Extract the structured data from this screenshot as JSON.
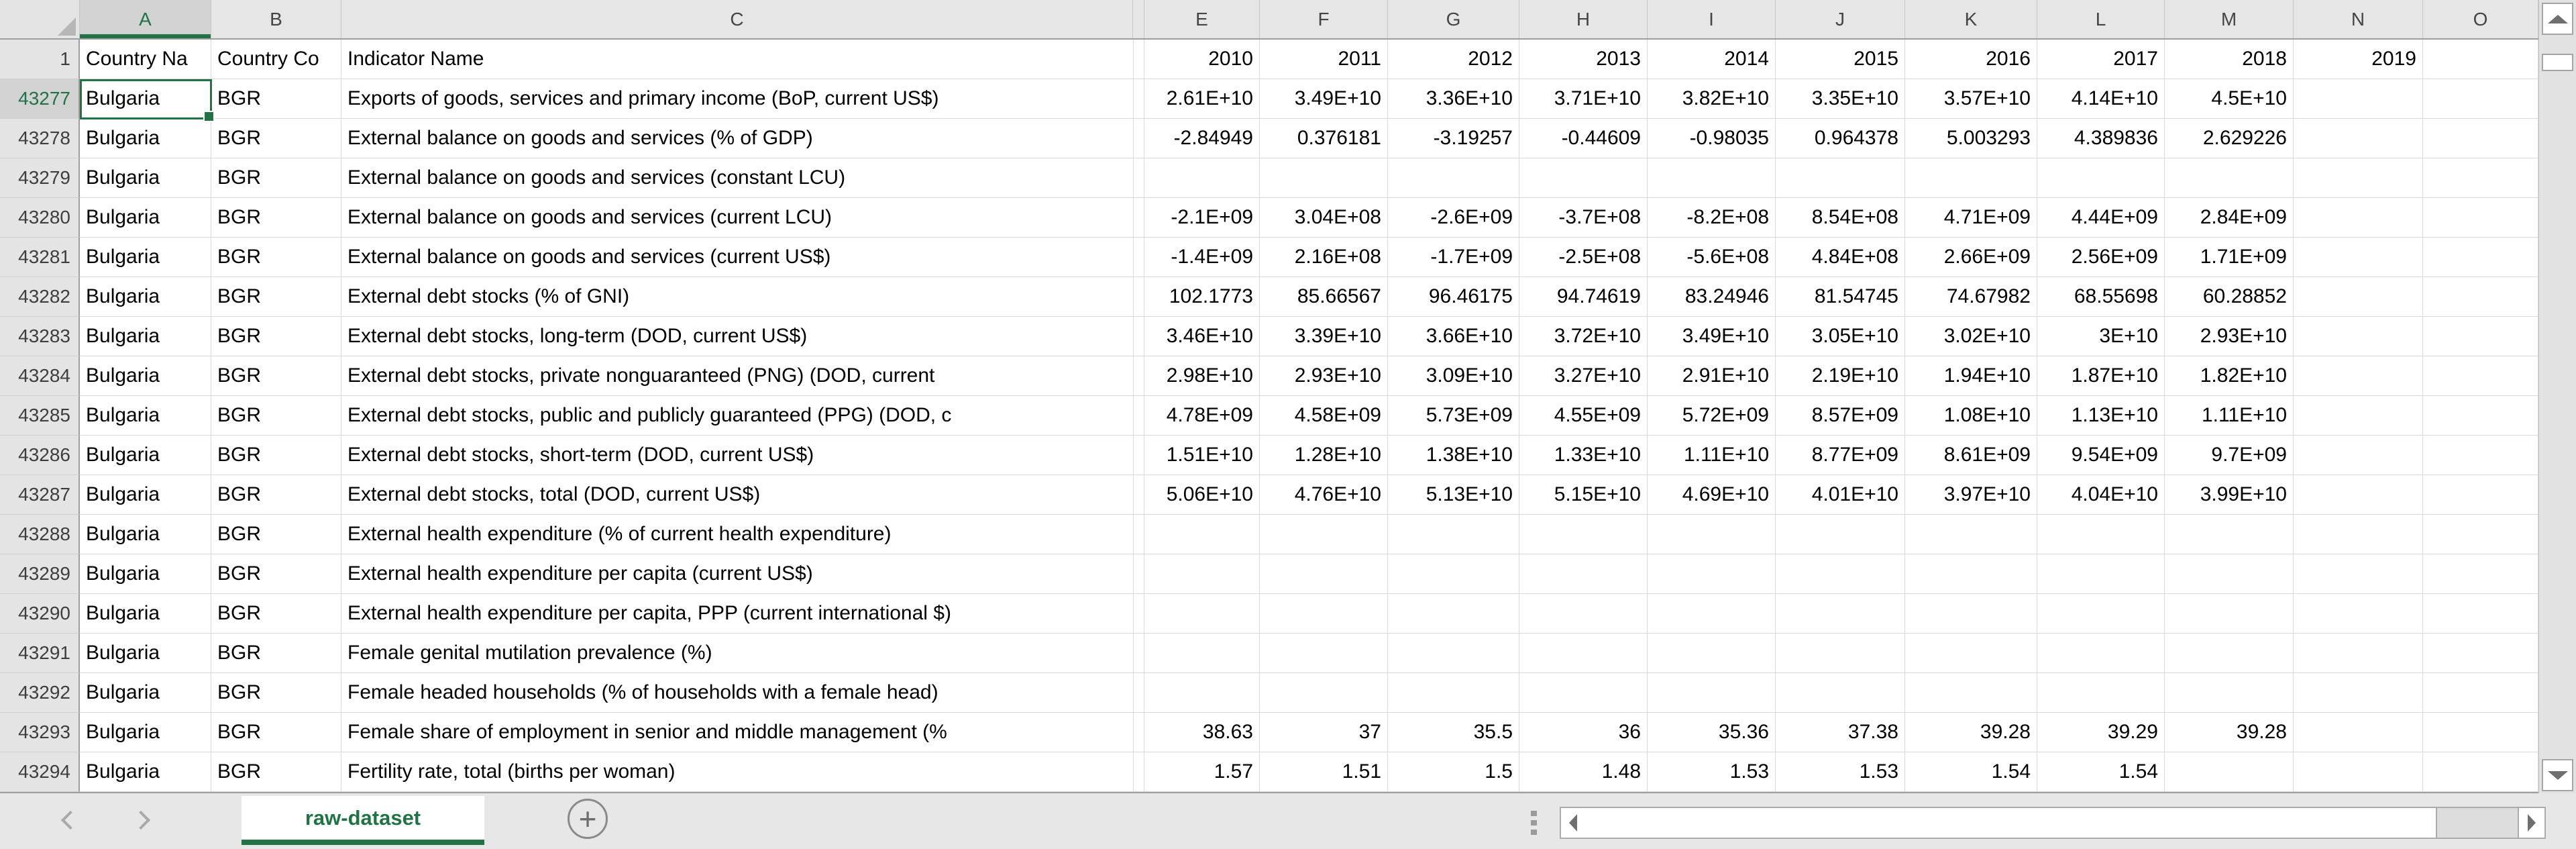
{
  "app": {
    "type": "spreadsheet-worksheet"
  },
  "selection": {
    "column": "A",
    "row": "43277",
    "cell": "A43277"
  },
  "columns": [
    {
      "id": "select-all",
      "label": ""
    },
    {
      "id": "A",
      "label": "A"
    },
    {
      "id": "B",
      "label": "B"
    },
    {
      "id": "C",
      "label": "C"
    },
    {
      "id": "D",
      "label": ""
    },
    {
      "id": "E",
      "label": "E"
    },
    {
      "id": "F",
      "label": "F"
    },
    {
      "id": "G",
      "label": "G"
    },
    {
      "id": "H",
      "label": "H"
    },
    {
      "id": "I",
      "label": "I"
    },
    {
      "id": "J",
      "label": "J"
    },
    {
      "id": "K",
      "label": "K"
    },
    {
      "id": "L",
      "label": "L"
    },
    {
      "id": "M",
      "label": "M"
    },
    {
      "id": "N",
      "label": "N"
    },
    {
      "id": "O",
      "label": "O"
    }
  ],
  "header_row": {
    "row_number": "1",
    "country_name_header": "Country Na",
    "country_code_header": "Country Co",
    "indicator_header": "Indicator Name",
    "year_headers": [
      "2010",
      "2011",
      "2012",
      "2013",
      "2014",
      "2015",
      "2016",
      "2017",
      "2018",
      "2019"
    ],
    "last_cell": ""
  },
  "rows": [
    {
      "n": "43277",
      "country": "Bulgaria",
      "code": "BGR",
      "indicator": "Exports of goods, services and primary income (BoP, current US$)",
      "values": [
        "2.61E+10",
        "3.49E+10",
        "3.36E+10",
        "3.71E+10",
        "3.82E+10",
        "3.35E+10",
        "3.57E+10",
        "4.14E+10",
        "4.5E+10",
        ""
      ]
    },
    {
      "n": "43278",
      "country": "Bulgaria",
      "code": "BGR",
      "indicator": "External balance on goods and services (% of GDP)",
      "values": [
        "-2.84949",
        "0.376181",
        "-3.19257",
        "-0.44609",
        "-0.98035",
        "0.964378",
        "5.003293",
        "4.389836",
        "2.629226",
        ""
      ]
    },
    {
      "n": "43279",
      "country": "Bulgaria",
      "code": "BGR",
      "indicator": "External balance on goods and services (constant LCU)",
      "values": [
        "",
        "",
        "",
        "",
        "",
        "",
        "",
        "",
        "",
        ""
      ]
    },
    {
      "n": "43280",
      "country": "Bulgaria",
      "code": "BGR",
      "indicator": "External balance on goods and services (current LCU)",
      "values": [
        "-2.1E+09",
        "3.04E+08",
        "-2.6E+09",
        "-3.7E+08",
        "-8.2E+08",
        "8.54E+08",
        "4.71E+09",
        "4.44E+09",
        "2.84E+09",
        ""
      ]
    },
    {
      "n": "43281",
      "country": "Bulgaria",
      "code": "BGR",
      "indicator": "External balance on goods and services (current US$)",
      "values": [
        "-1.4E+09",
        "2.16E+08",
        "-1.7E+09",
        "-2.5E+08",
        "-5.6E+08",
        "4.84E+08",
        "2.66E+09",
        "2.56E+09",
        "1.71E+09",
        ""
      ]
    },
    {
      "n": "43282",
      "country": "Bulgaria",
      "code": "BGR",
      "indicator": "External debt stocks (% of GNI)",
      "values": [
        "102.1773",
        "85.66567",
        "96.46175",
        "94.74619",
        "83.24946",
        "81.54745",
        "74.67982",
        "68.55698",
        "60.28852",
        ""
      ]
    },
    {
      "n": "43283",
      "country": "Bulgaria",
      "code": "BGR",
      "indicator": "External debt stocks, long-term (DOD, current US$)",
      "values": [
        "3.46E+10",
        "3.39E+10",
        "3.66E+10",
        "3.72E+10",
        "3.49E+10",
        "3.05E+10",
        "3.02E+10",
        "3E+10",
        "2.93E+10",
        ""
      ]
    },
    {
      "n": "43284",
      "country": "Bulgaria",
      "code": "BGR",
      "indicator": "External debt stocks, private nonguaranteed (PNG) (DOD, current",
      "values": [
        "2.98E+10",
        "2.93E+10",
        "3.09E+10",
        "3.27E+10",
        "2.91E+10",
        "2.19E+10",
        "1.94E+10",
        "1.87E+10",
        "1.82E+10",
        ""
      ]
    },
    {
      "n": "43285",
      "country": "Bulgaria",
      "code": "BGR",
      "indicator": "External debt stocks, public and publicly guaranteed (PPG) (DOD, c",
      "values": [
        "4.78E+09",
        "4.58E+09",
        "5.73E+09",
        "4.55E+09",
        "5.72E+09",
        "8.57E+09",
        "1.08E+10",
        "1.13E+10",
        "1.11E+10",
        ""
      ]
    },
    {
      "n": "43286",
      "country": "Bulgaria",
      "code": "BGR",
      "indicator": "External debt stocks, short-term (DOD, current US$)",
      "values": [
        "1.51E+10",
        "1.28E+10",
        "1.38E+10",
        "1.33E+10",
        "1.11E+10",
        "8.77E+09",
        "8.61E+09",
        "9.54E+09",
        "9.7E+09",
        ""
      ]
    },
    {
      "n": "43287",
      "country": "Bulgaria",
      "code": "BGR",
      "indicator": "External debt stocks, total (DOD, current US$)",
      "values": [
        "5.06E+10",
        "4.76E+10",
        "5.13E+10",
        "5.15E+10",
        "4.69E+10",
        "4.01E+10",
        "3.97E+10",
        "4.04E+10",
        "3.99E+10",
        ""
      ]
    },
    {
      "n": "43288",
      "country": "Bulgaria",
      "code": "BGR",
      "indicator": "External health expenditure (% of current health expenditure)",
      "values": [
        "",
        "",
        "",
        "",
        "",
        "",
        "",
        "",
        "",
        ""
      ]
    },
    {
      "n": "43289",
      "country": "Bulgaria",
      "code": "BGR",
      "indicator": "External health expenditure per capita (current US$)",
      "values": [
        "",
        "",
        "",
        "",
        "",
        "",
        "",
        "",
        "",
        ""
      ]
    },
    {
      "n": "43290",
      "country": "Bulgaria",
      "code": "BGR",
      "indicator": "External health expenditure per capita, PPP (current international $)",
      "values": [
        "",
        "",
        "",
        "",
        "",
        "",
        "",
        "",
        "",
        ""
      ]
    },
    {
      "n": "43291",
      "country": "Bulgaria",
      "code": "BGR",
      "indicator": "Female genital mutilation prevalence (%)",
      "values": [
        "",
        "",
        "",
        "",
        "",
        "",
        "",
        "",
        "",
        ""
      ]
    },
    {
      "n": "43292",
      "country": "Bulgaria",
      "code": "BGR",
      "indicator": "Female headed households (% of households with a female head)",
      "values": [
        "",
        "",
        "",
        "",
        "",
        "",
        "",
        "",
        "",
        ""
      ]
    },
    {
      "n": "43293",
      "country": "Bulgaria",
      "code": "BGR",
      "indicator": "Female share of employment in senior and middle management (%",
      "values": [
        "38.63",
        "37",
        "35.5",
        "36",
        "35.36",
        "37.38",
        "39.28",
        "39.29",
        "39.28",
        ""
      ]
    },
    {
      "n": "43294",
      "country": "Bulgaria",
      "code": "BGR",
      "indicator": "Fertility rate, total (births per woman)",
      "values": [
        "1.57",
        "1.51",
        "1.5",
        "1.48",
        "1.53",
        "1.53",
        "1.54",
        "1.54",
        "",
        ""
      ]
    }
  ],
  "tabs": {
    "active_label": "raw-dataset"
  },
  "icons": {
    "add_sheet": "+"
  },
  "colors": {
    "accent_green": "#217346",
    "header_bg": "#e6e6e6",
    "selected_header_bg": "#d2d2d2",
    "gridline": "#d8d8d8",
    "header_border": "#9e9e9e",
    "tab_strip_bg": "#e7e7e7"
  }
}
